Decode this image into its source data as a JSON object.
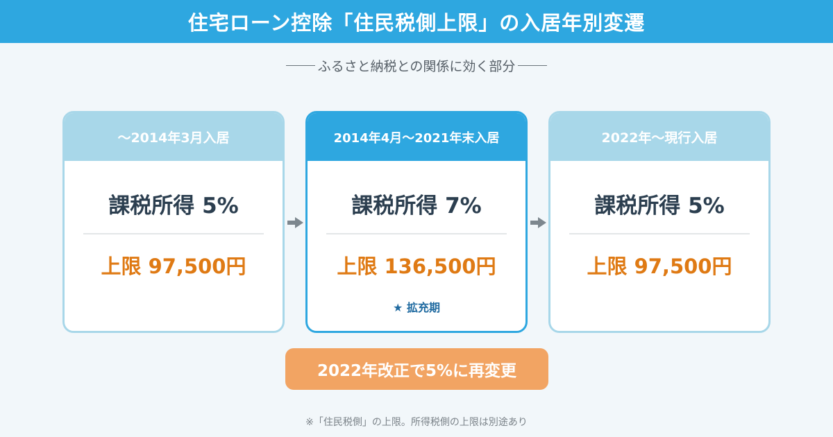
{
  "header": {
    "title": "住宅ローン控除「住民税側上限」の入居年別変遷"
  },
  "subtitle": {
    "text": "ふるさと納税との関係に効く部分"
  },
  "cards": [
    {
      "period": "〜2014年3月入居",
      "rate": "課税所得 5%",
      "limit": "上限 97,500円",
      "badge": ""
    },
    {
      "period": "2014年4月〜2021年末入居",
      "rate": "課税所得 7%",
      "limit": "上限 136,500円",
      "badge": "★ 拡充期"
    },
    {
      "period": "2022年〜現行入居",
      "rate": "課税所得 5%",
      "limit": "上限 97,500円",
      "badge": ""
    }
  ],
  "callout": {
    "text": "2022年改正で5%に再変更"
  },
  "footnote": {
    "text": "※「住民税側」の上限。所得税側の上限は別途あり"
  },
  "icons": {
    "arrow": "arrow-right-icon"
  },
  "colors": {
    "header_bg": "#2ea7e0",
    "card_border": "#a8d7e9",
    "card_highlight": "#2ea7e0",
    "rate_text": "#2b3e4f",
    "limit_text": "#df7a14",
    "callout_bg": "#f2a463",
    "badge_text": "#1f6aa0"
  }
}
